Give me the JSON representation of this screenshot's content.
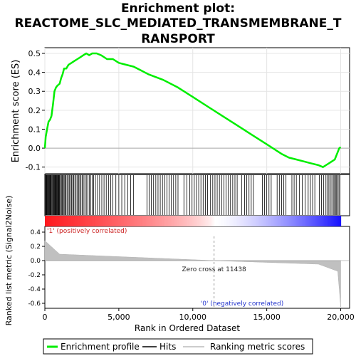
{
  "header": {
    "title_line1": "Enrichment plot:",
    "title_line2": "REACTOME_SLC_MEDIATED_TRANSMEMBRANE_T",
    "title_line3": "RANSPORT"
  },
  "legend": [
    "Enrichment profile",
    "Hits",
    "Ranking metric scores"
  ],
  "panels": {
    "positive_label": "'1' (positively correlated)",
    "negative_label": "'0' (negatively correlated)",
    "zero_cross_label": "Zero cross at 11438",
    "zero_cross": 11438,
    "metric_ylabel": "Ranked list metric (Signal2Noise)",
    "metric_yticks": [
      0.4,
      0.2,
      0.0,
      -0.2,
      -0.4,
      -0.6
    ],
    "metric_ylim": [
      -0.67,
      0.48
    ]
  },
  "colors": {
    "es_line": "#00ee00",
    "metric_fill": "#c0c0c0",
    "positive_text": "#cc2222",
    "negative_text": "#2233cc"
  },
  "chart_data": {
    "type": "line",
    "title": "Enrichment plot: REACTOME_SLC_MEDIATED_TRANSMEMBRANE_TRANSPORT",
    "xlabel": "Rank in Ordered Dataset",
    "ylabel": "Enrichment score (ES)",
    "xlim": [
      0,
      20600
    ],
    "ylim": [
      -0.135,
      0.53
    ],
    "xticks": [
      0,
      5000,
      10000,
      15000,
      20000
    ],
    "xtick_labels": [
      "0",
      "5,000",
      "10,000",
      "15,000",
      "20,000"
    ],
    "yticks": [
      -0.1,
      0.0,
      0.1,
      0.2,
      0.3,
      0.4,
      0.5
    ],
    "grid": true,
    "series": [
      {
        "name": "Enrichment profile",
        "x": [
          0,
          60,
          150,
          250,
          350,
          450,
          550,
          650,
          750,
          850,
          1000,
          1100,
          1200,
          1300,
          1450,
          1600,
          1800,
          2000,
          2200,
          2400,
          2600,
          2800,
          3000,
          3200,
          3500,
          3800,
          4200,
          4600,
          5000,
          5500,
          6000,
          6500,
          7000,
          8000,
          9000,
          10000,
          11000,
          12000,
          13000,
          14000,
          15000,
          16000,
          16500,
          17000,
          17500,
          18000,
          18500,
          18800,
          19000,
          19200,
          19400,
          19600,
          19700,
          19800,
          19900,
          20000
        ],
        "y": [
          0.0,
          0.06,
          0.1,
          0.14,
          0.15,
          0.17,
          0.23,
          0.3,
          0.32,
          0.33,
          0.34,
          0.37,
          0.39,
          0.42,
          0.42,
          0.44,
          0.45,
          0.46,
          0.47,
          0.48,
          0.49,
          0.5,
          0.49,
          0.5,
          0.5,
          0.49,
          0.47,
          0.47,
          0.45,
          0.44,
          0.43,
          0.41,
          0.39,
          0.36,
          0.32,
          0.27,
          0.22,
          0.17,
          0.12,
          0.07,
          0.02,
          -0.03,
          -0.05,
          -0.06,
          -0.07,
          -0.08,
          -0.09,
          -0.1,
          -0.09,
          -0.08,
          -0.07,
          -0.06,
          -0.04,
          -0.02,
          0.0,
          0.005
        ]
      }
    ],
    "hit_ranks": [
      20,
      60,
      100,
      140,
      180,
      220,
      260,
      300,
      340,
      380,
      420,
      470,
      520,
      560,
      600,
      640,
      680,
      720,
      760,
      800,
      840,
      880,
      920,
      960,
      1000,
      1060,
      1120,
      1180,
      1240,
      1300,
      1360,
      1420,
      1500,
      1580,
      1650,
      1720,
      1800,
      1880,
      1950,
      2030,
      2110,
      2200,
      2280,
      2360,
      2440,
      2520,
      2600,
      2700,
      2800,
      2900,
      3000,
      3100,
      3200,
      3300,
      3420,
      3560,
      3700,
      3850,
      4000,
      4150,
      4300,
      4450,
      4600,
      4800,
      5000,
      5200,
      5400,
      5600,
      5800,
      6000,
      6900,
      7050,
      7200,
      7350,
      7500,
      7650,
      7800,
      7950,
      8100,
      8250,
      8400,
      8550,
      8700,
      8850,
      9000,
      9400,
      9600,
      9800,
      9950,
      10100,
      10250,
      10400,
      10550,
      10700,
      10850,
      11000,
      11200,
      11350,
      11500,
      11650,
      11800,
      11950,
      12100,
      12250,
      12400,
      12550,
      12700,
      12850,
      13000,
      13300,
      13500,
      13650,
      13800,
      13950,
      14100,
      14700,
      14850,
      15000,
      15150,
      15300,
      15700,
      15850,
      16000,
      16150,
      16300,
      16700,
      16850,
      17000,
      17200,
      17400,
      17600,
      17800,
      17950,
      18100,
      18250,
      18550,
      18700,
      18850,
      19000,
      19100,
      19200,
      19300,
      19400,
      19500,
      19580,
      19650,
      19720,
      19800,
      19880,
      19950
    ]
  }
}
